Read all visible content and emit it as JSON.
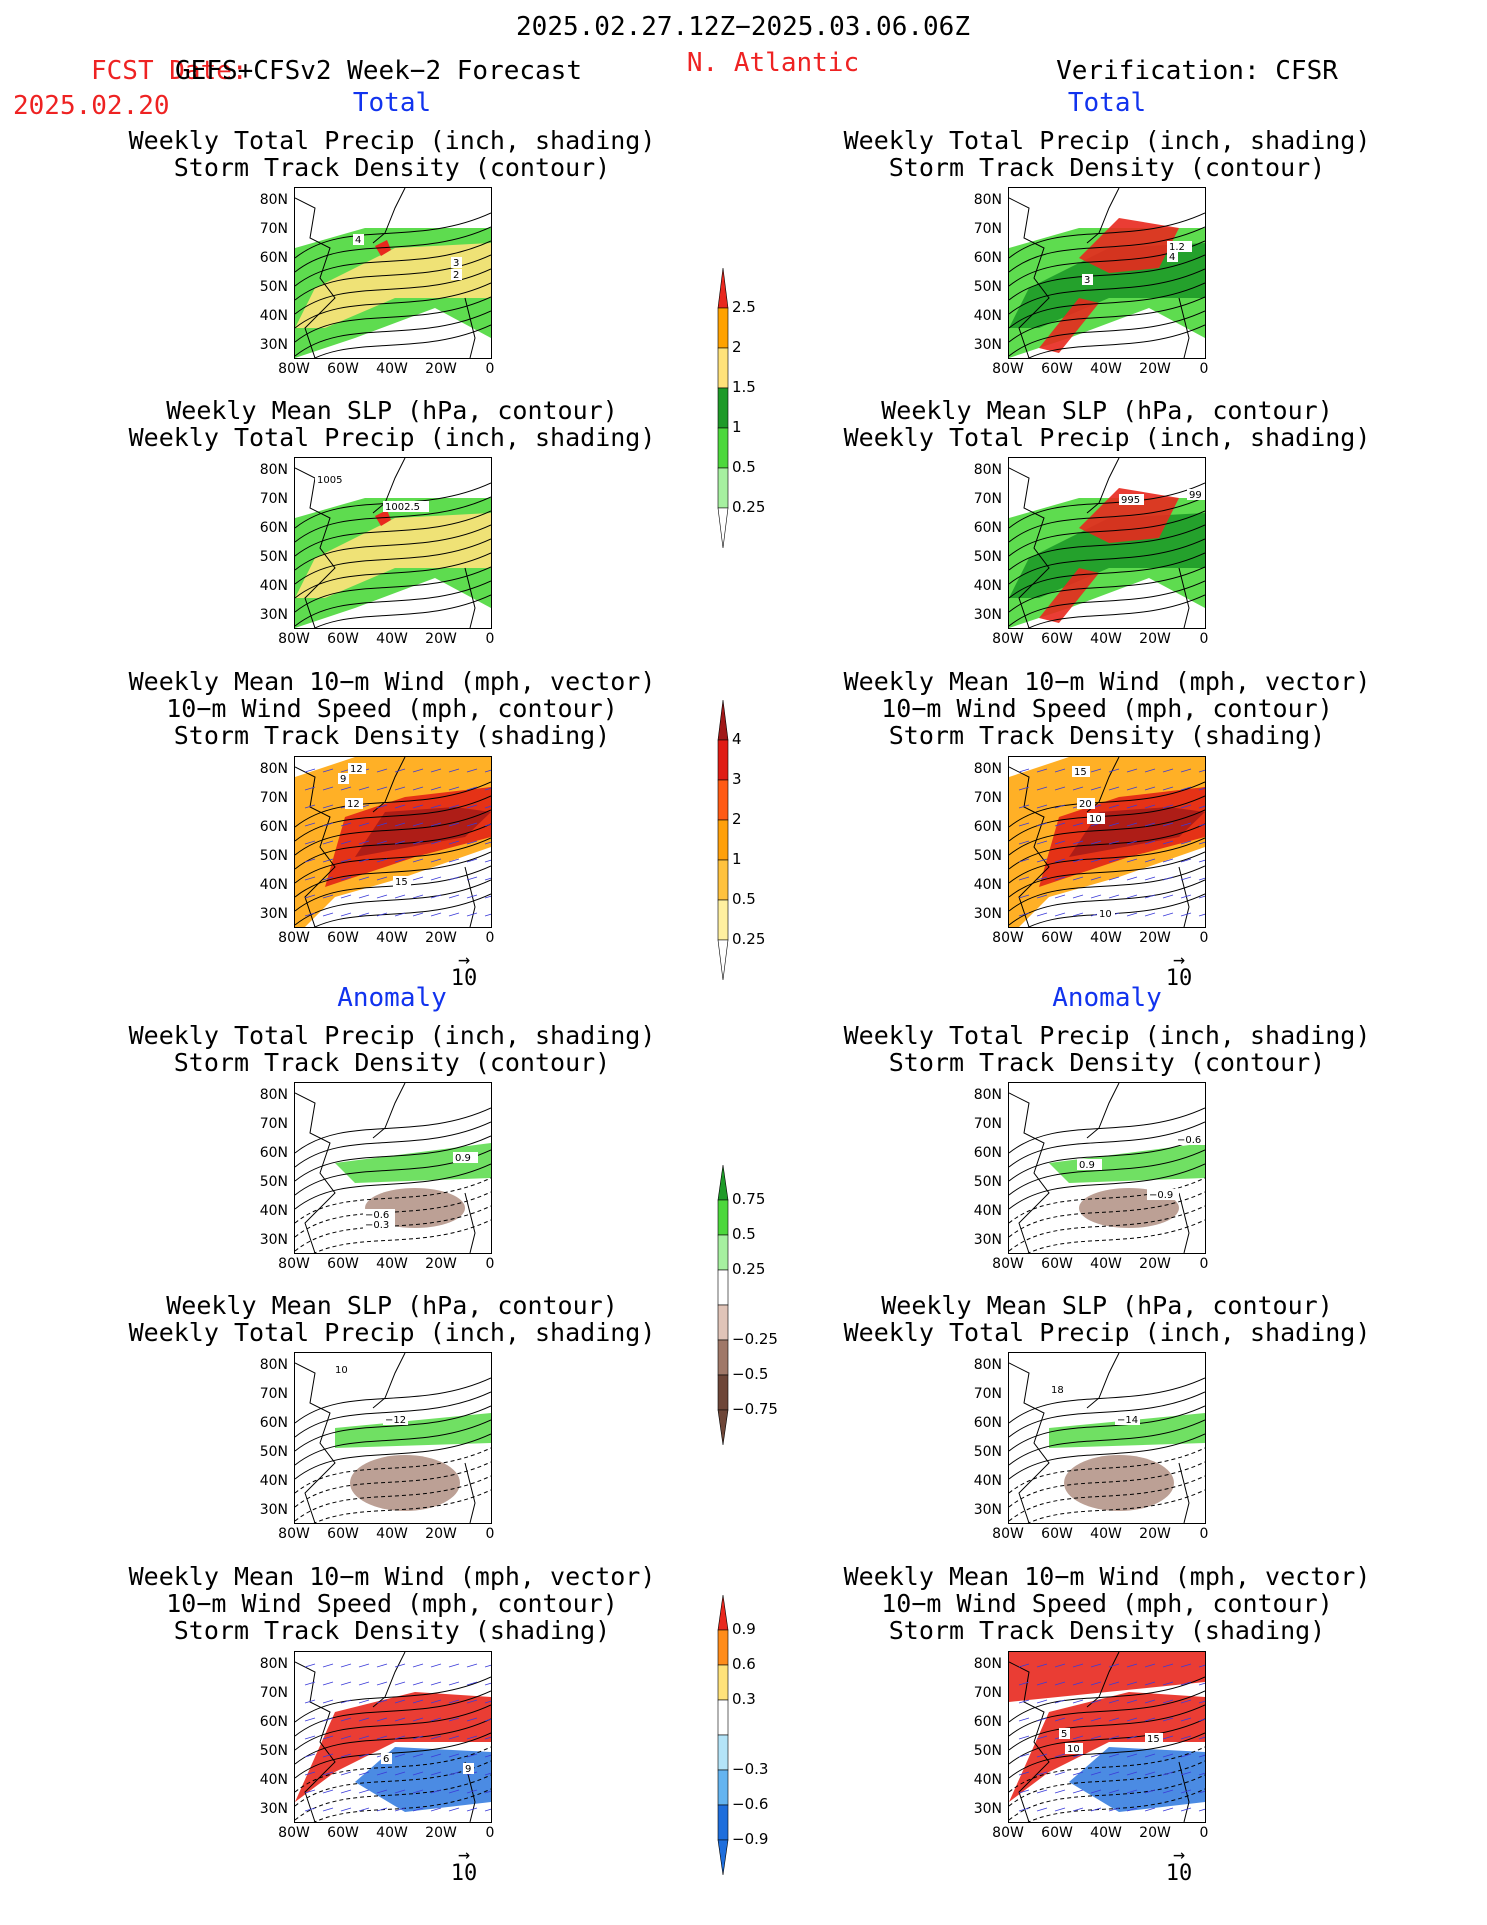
{
  "header": {
    "period": "2025.02.27.12Z−2025.03.06.06Z",
    "fcst_label": "FCST Date:",
    "fcst_model": "GEFS+CFSv2 Week−2 Forecast",
    "fcst_date": "2025.02.20",
    "region": "N. Atlantic",
    "verification": "Verification: CFSR"
  },
  "sections": {
    "total": "Total",
    "anomaly": "Anomaly"
  },
  "axes": {
    "lat_ticks": [
      "80N",
      "70N",
      "60N",
      "50N",
      "40N",
      "30N"
    ],
    "lon_ticks": [
      "80W",
      "60W",
      "40W",
      "20W",
      "0"
    ]
  },
  "vector_ref": "10",
  "panels": [
    {
      "id": "fc-tot-precip",
      "title": [
        "Weekly Total Precip (inch, shading)",
        "Storm Track Density (contour)"
      ],
      "labels": [
        "4",
        "3",
        "2"
      ]
    },
    {
      "id": "fc-tot-slp",
      "title": [
        "Weekly Mean SLP (hPa, contour)",
        "Weekly Total Precip (inch, shading)"
      ],
      "labels": [
        "1005",
        "1002.5"
      ]
    },
    {
      "id": "fc-tot-wind",
      "title": [
        "Weekly Mean 10−m Wind (mph, vector)",
        "10−m Wind Speed (mph, contour)",
        "Storm Track Density (shading)"
      ],
      "labels": [
        "12",
        "9",
        "12",
        "15"
      ]
    },
    {
      "id": "vf-tot-precip",
      "title": [
        "Weekly Total Precip (inch, shading)",
        "Storm Track Density (contour)"
      ],
      "labels": [
        "3",
        "1.2",
        "4"
      ]
    },
    {
      "id": "vf-tot-slp",
      "title": [
        "Weekly Mean SLP (hPa, contour)",
        "Weekly Total Precip (inch, shading)"
      ],
      "labels": [
        "995",
        "99"
      ]
    },
    {
      "id": "vf-tot-wind",
      "title": [
        "Weekly Mean 10−m Wind (mph, vector)",
        "10−m Wind Speed (mph, contour)",
        "Storm Track Density (shading)"
      ],
      "labels": [
        "15",
        "20",
        "10",
        "10"
      ]
    },
    {
      "id": "fc-anom-precip",
      "title": [
        "Weekly Total Precip (inch, shading)",
        "Storm Track Density (contour)"
      ],
      "labels": [
        "0.9",
        "−0.6",
        "−0.3"
      ]
    },
    {
      "id": "fc-anom-slp",
      "title": [
        "Weekly Mean SLP (hPa, contour)",
        "Weekly Total Precip (inch, shading)"
      ],
      "labels": [
        "10",
        "−12"
      ]
    },
    {
      "id": "fc-anom-wind",
      "title": [
        "Weekly Mean 10−m Wind (mph, vector)",
        "10−m Wind Speed (mph, contour)",
        "Storm Track Density (shading)"
      ],
      "labels": [
        "6",
        "9"
      ]
    },
    {
      "id": "vf-anom-precip",
      "title": [
        "Weekly Total Precip (inch, shading)",
        "Storm Track Density (contour)"
      ],
      "labels": [
        "−0.6",
        "0.9",
        "−0.9"
      ]
    },
    {
      "id": "vf-anom-slp",
      "title": [
        "Weekly Mean SLP (hPa, contour)",
        "Weekly Total Precip (inch, shading)"
      ],
      "labels": [
        "18",
        "−14"
      ]
    },
    {
      "id": "vf-anom-wind",
      "title": [
        "Weekly Mean 10−m Wind (mph, vector)",
        "10−m Wind Speed (mph, contour)",
        "Storm Track Density (shading)"
      ],
      "labels": [
        "5",
        "10",
        "15"
      ]
    }
  ],
  "colorbars": [
    {
      "id": "precip-total",
      "labels": [
        "2.5",
        "2",
        "1.5",
        "1",
        "0.5",
        "0.25"
      ],
      "colors": [
        "#e8281e",
        "#ffa200",
        "#ffe27a",
        "#1e9a28",
        "#4cd83c",
        "#a6f0a0"
      ]
    },
    {
      "id": "stdens-total",
      "labels": [
        "4",
        "3",
        "2",
        "1",
        "0.5",
        "0.25"
      ],
      "colors": [
        "#a01818",
        "#e01c14",
        "#ff5a14",
        "#ffa00a",
        "#ffc23e",
        "#fff0a0"
      ]
    },
    {
      "id": "precip-anom",
      "labels": [
        "0.75",
        "0.5",
        "0.25",
        "−0.25",
        "−0.5",
        "−0.75"
      ],
      "colors": [
        "#1e9a28",
        "#4cd83c",
        "#a6f0a0",
        "#ffffff",
        "#e0c4b8",
        "#a07868",
        "#6e4638"
      ]
    },
    {
      "id": "stdens-anom",
      "labels": [
        "0.9",
        "0.6",
        "0.3",
        "−0.3",
        "−0.6",
        "−0.9"
      ],
      "colors": [
        "#e8281e",
        "#ff8c1a",
        "#ffe27a",
        "#ffffff",
        "#b4e4f8",
        "#64b4f0",
        "#1e6edc"
      ]
    }
  ]
}
